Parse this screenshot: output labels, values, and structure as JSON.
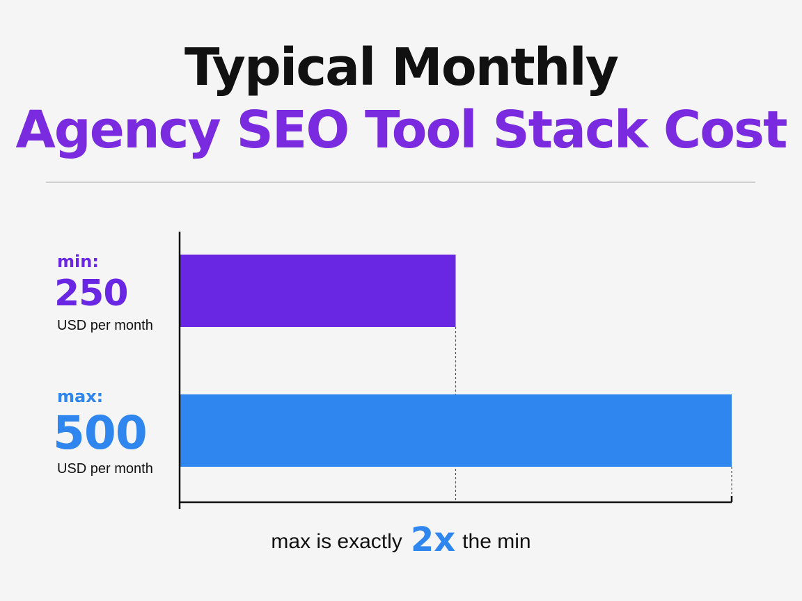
{
  "title": {
    "line1": "Typical Monthly",
    "line2": "Agency SEO Tool Stack Cost"
  },
  "colors": {
    "min": "#6a27e3",
    "max": "#2f86ef",
    "title_accent": "#7a2be0",
    "text": "#111111",
    "axis": "#111111",
    "background": "#f5f5f6"
  },
  "labels": {
    "min_key": "min:",
    "min_value": "250",
    "min_unit": "USD per month",
    "max_key": "max:",
    "max_value": "500",
    "max_unit": "USD per month"
  },
  "footnote": {
    "before": "max is exactly",
    "multiplier": "2x",
    "after": "the min"
  },
  "chart_data": {
    "type": "bar",
    "orientation": "horizontal",
    "categories": [
      "min",
      "max"
    ],
    "values": [
      250,
      500
    ],
    "unit": "USD per month",
    "xlim": [
      0,
      500
    ],
    "grid": false,
    "title": "Typical Monthly Agency SEO Tool Stack Cost"
  }
}
